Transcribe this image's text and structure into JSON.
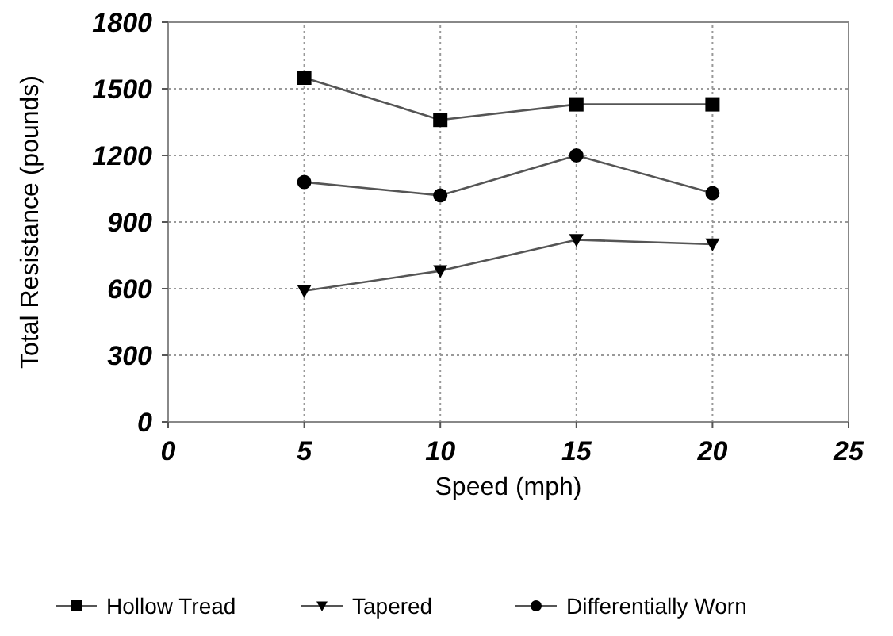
{
  "chart_data": {
    "type": "line",
    "xlabel": "Speed (mph)",
    "ylabel": "Total Resistance (pounds)",
    "x": [
      5,
      10,
      15,
      20
    ],
    "series": [
      {
        "name": "Hollow Tread",
        "color": "#000000",
        "marker": "square",
        "values": [
          1550,
          1360,
          1430,
          1430
        ]
      },
      {
        "name": "Tapered",
        "color": "#000000",
        "marker": "triangle",
        "values": [
          590,
          680,
          820,
          800
        ]
      },
      {
        "name": "Differentially Worn",
        "color": "#000000",
        "marker": "circle",
        "values": [
          1080,
          1020,
          1200,
          1030
        ]
      }
    ],
    "xlim": [
      0,
      25
    ],
    "xticks": [
      0,
      5,
      10,
      15,
      20,
      25
    ],
    "ylim": [
      0,
      1800
    ],
    "yticks": [
      0,
      300,
      600,
      900,
      1200,
      1500,
      1800
    ],
    "grid": true,
    "legend": "bottom",
    "line_style": "solid"
  }
}
